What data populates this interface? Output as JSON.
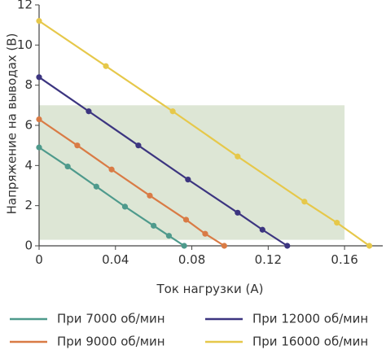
{
  "chart_data": {
    "type": "line",
    "xlabel": "Ток нагрузки (А)",
    "ylabel": "Напряжение на выводах (В)",
    "xlim": [
      0,
      0.18
    ],
    "ylim": [
      0,
      12
    ],
    "x_ticks": [
      "0",
      "0.04",
      "0.08",
      "0.12",
      "0.16"
    ],
    "y_ticks": [
      "0",
      "2",
      "4",
      "6",
      "8",
      "10",
      "12"
    ],
    "grid": false,
    "legend_position": "bottom",
    "shaded_region": {
      "x": [
        0,
        0.16
      ],
      "y": [
        0.3,
        7.0
      ],
      "color": "#dde6d5"
    },
    "series": [
      {
        "name": "При 7000 об/мин",
        "color": "#4e9a8c",
        "points": [
          [
            0,
            4.9
          ],
          [
            0.015,
            3.95
          ],
          [
            0.03,
            2.95
          ],
          [
            0.045,
            1.95
          ],
          [
            0.06,
            1.0
          ],
          [
            0.068,
            0.5
          ],
          [
            0.076,
            0.0
          ]
        ]
      },
      {
        "name": "При 9000 об/мин",
        "color": "#d97b45",
        "points": [
          [
            0,
            6.3
          ],
          [
            0.02,
            5.0
          ],
          [
            0.038,
            3.8
          ],
          [
            0.058,
            2.5
          ],
          [
            0.077,
            1.3
          ],
          [
            0.087,
            0.6
          ],
          [
            0.097,
            0.0
          ]
        ]
      },
      {
        "name": "При 12000 об/мин",
        "color": "#3c3580",
        "points": [
          [
            0,
            8.4
          ],
          [
            0.026,
            6.7
          ],
          [
            0.052,
            5.0
          ],
          [
            0.078,
            3.3
          ],
          [
            0.104,
            1.65
          ],
          [
            0.117,
            0.8
          ],
          [
            0.13,
            0.0
          ]
        ]
      },
      {
        "name": "При 16000 об/мин",
        "color": "#e6c84a",
        "points": [
          [
            0,
            11.2
          ],
          [
            0.035,
            8.95
          ],
          [
            0.07,
            6.7
          ],
          [
            0.104,
            4.45
          ],
          [
            0.139,
            2.2
          ],
          [
            0.156,
            1.15
          ],
          [
            0.173,
            0.0
          ]
        ]
      }
    ]
  }
}
